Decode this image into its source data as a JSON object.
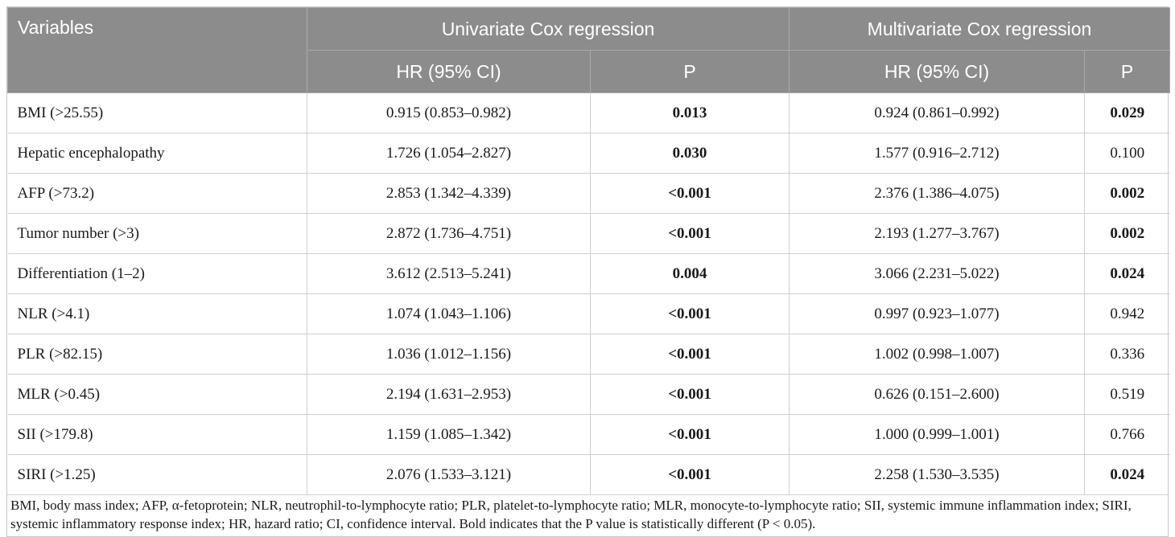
{
  "header": {
    "variables": "Variables",
    "univariate": "Univariate Cox regression",
    "multivariate": "Multivariate Cox regression",
    "hr_label": "HR (95% CI)",
    "p_label": "P"
  },
  "rows": [
    {
      "variable": "BMI (>25.55)",
      "uni_hr": "0.915 (0.853–0.982)",
      "uni_p": "0.013",
      "uni_bold": true,
      "multi_hr": "0.924 (0.861–0.992)",
      "multi_p": "0.029",
      "multi_bold": true
    },
    {
      "variable": "Hepatic encephalopathy",
      "uni_hr": "1.726 (1.054–2.827)",
      "uni_p": "0.030",
      "uni_bold": true,
      "multi_hr": "1.577 (0.916–2.712)",
      "multi_p": "0.100",
      "multi_bold": false
    },
    {
      "variable": "AFP (>73.2)",
      "uni_hr": "2.853 (1.342–4.339)",
      "uni_p": "<0.001",
      "uni_bold": true,
      "multi_hr": "2.376 (1.386–4.075)",
      "multi_p": "0.002",
      "multi_bold": true
    },
    {
      "variable": "Tumor number (>3)",
      "uni_hr": "2.872 (1.736–4.751)",
      "uni_p": "<0.001",
      "uni_bold": true,
      "multi_hr": "2.193 (1.277–3.767)",
      "multi_p": "0.002",
      "multi_bold": true
    },
    {
      "variable": "Differentiation (1–2)",
      "uni_hr": "3.612 (2.513–5.241)",
      "uni_p": "0.004",
      "uni_bold": true,
      "multi_hr": "3.066 (2.231–5.022)",
      "multi_p": "0.024",
      "multi_bold": true
    },
    {
      "variable": "NLR (>4.1)",
      "uni_hr": "1.074 (1.043–1.106)",
      "uni_p": "<0.001",
      "uni_bold": true,
      "multi_hr": "0.997 (0.923–1.077)",
      "multi_p": "0.942",
      "multi_bold": false
    },
    {
      "variable": "PLR (>82.15)",
      "uni_hr": "1.036 (1.012–1.156)",
      "uni_p": "<0.001",
      "uni_bold": true,
      "multi_hr": "1.002 (0.998–1.007)",
      "multi_p": "0.336",
      "multi_bold": false
    },
    {
      "variable": "MLR (>0.45)",
      "uni_hr": "2.194 (1.631–2.953)",
      "uni_p": "<0.001",
      "uni_bold": true,
      "multi_hr": "0.626 (0.151–2.600)",
      "multi_p": "0.519",
      "multi_bold": false
    },
    {
      "variable": "SII (>179.8)",
      "uni_hr": "1.159 (1.085–1.342)",
      "uni_p": "<0.001",
      "uni_bold": true,
      "multi_hr": "1.000 (0.999–1.001)",
      "multi_p": "0.766",
      "multi_bold": false
    },
    {
      "variable": "SIRI (>1.25)",
      "uni_hr": "2.076 (1.533–3.121)",
      "uni_p": "<0.001",
      "uni_bold": true,
      "multi_hr": "2.258 (1.530–3.535)",
      "multi_p": "0.024",
      "multi_bold": true
    }
  ],
  "footnote": "BMI, body mass index; AFP, α-fetoprotein; NLR, neutrophil-to-lymphocyte ratio; PLR, platelet-to-lymphocyte ratio; MLR, monocyte-to-lymphocyte ratio; SII, systemic immune inflammation index; SIRI, systemic inflammatory response index; HR, hazard ratio; CI, confidence interval. Bold indicates that the P value is statistically different (P < 0.05).",
  "colors": {
    "header_bg": "#8c8c8c",
    "header_text": "#ffffff",
    "border": "#cfcfcf"
  }
}
